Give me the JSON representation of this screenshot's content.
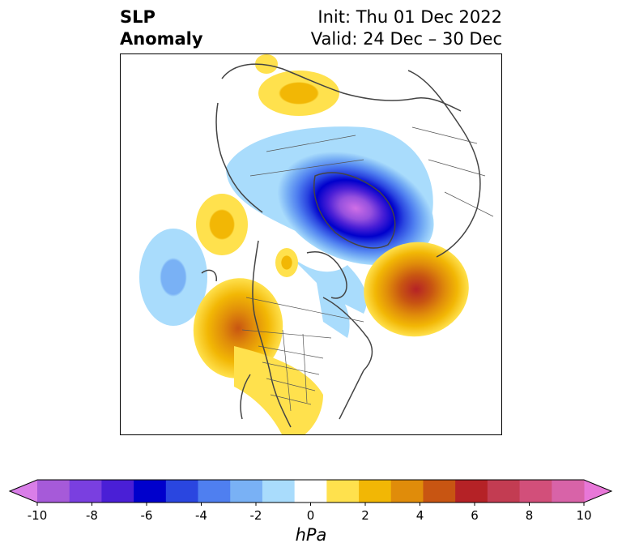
{
  "title": {
    "left_line1": "SLP",
    "left_line2": "Anomaly",
    "right_line1": "Init: Thu 01 Dec 2022",
    "right_line2": "Valid: 24 Dec – 30 Dec"
  },
  "colorbar": {
    "units": "hPa",
    "tick_labels": [
      "-10",
      "-8",
      "-6",
      "-4",
      "-2",
      "0",
      "2",
      "4",
      "6",
      "8",
      "10"
    ],
    "colors": [
      "#d97ee8",
      "#a65ad9",
      "#7a3fe0",
      "#4a1fd6",
      "#0000cc",
      "#2a46e0",
      "#4f7ff0",
      "#79b1f5",
      "#a9dcfc",
      "#ffffff",
      "#ffe14d",
      "#f2b705",
      "#e08c0a",
      "#c85512",
      "#b52226",
      "#c33c52",
      "#d24f7a",
      "#d863a8",
      "#e877d8"
    ],
    "range": [
      -10,
      10
    ],
    "extend": "both"
  },
  "map": {
    "projection": "north-polar stereographic",
    "anomalies": [
      {
        "region": "North Pole / Arctic Ocean",
        "sign": "negative",
        "peak_hpa": -10
      },
      {
        "region": "North Atlantic",
        "sign": "positive",
        "peak_hpa": 7
      },
      {
        "region": "Pacific Northwest",
        "sign": "positive",
        "peak_hpa": 5
      },
      {
        "region": "North Pacific",
        "sign": "negative",
        "peak_hpa": -3
      },
      {
        "region": "Eastern Siberia / Russia",
        "sign": "positive",
        "peak_hpa": 3
      },
      {
        "region": "Central North America",
        "sign": "positive",
        "peak_hpa": 2
      }
    ]
  }
}
